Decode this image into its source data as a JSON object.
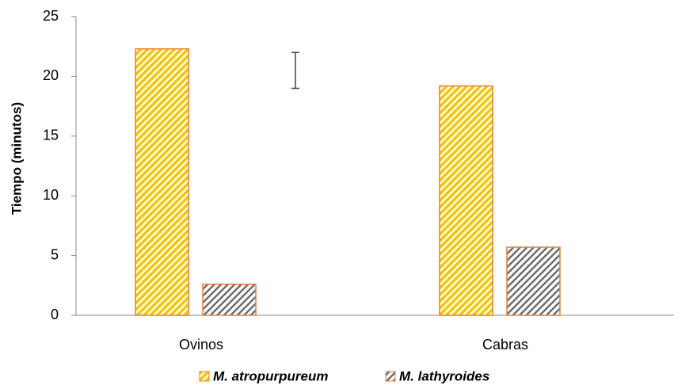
{
  "chart_data": {
    "type": "bar",
    "y_label": "Tiempo (minutos)",
    "categories": [
      "Ovinos",
      "Cabras"
    ],
    "series": [
      {
        "name": "M. atropurpureum",
        "color": "#ed7d31",
        "pattern_color": "#f7c600",
        "values": [
          22.3,
          19.2
        ]
      },
      {
        "name": "M. lathyroides",
        "color": "#ed7d31",
        "pattern_color": "#6e6e6e",
        "values": [
          2.6,
          5.7
        ]
      }
    ],
    "error_bar": [
      19,
      22
    ],
    "ylim": [
      0,
      25
    ],
    "yticks": [
      0,
      5,
      10,
      15,
      20,
      25
    ]
  }
}
